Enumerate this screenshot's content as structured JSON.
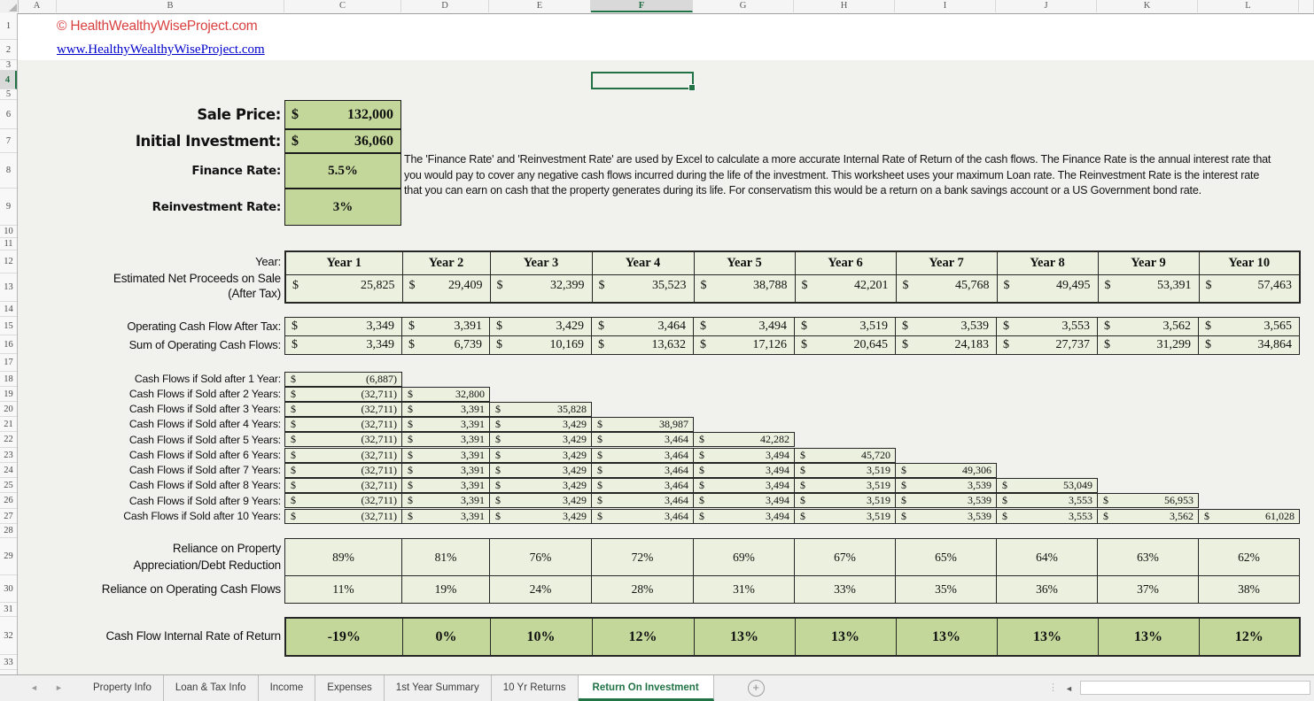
{
  "colors": {
    "excel_green": "#217346",
    "light_green_fill": "#EBF1DE",
    "medium_green_fill": "#C4D79B",
    "copyright_red": "#D94040",
    "link_blue": "#0000CC"
  },
  "grid": {
    "columns": [
      "A",
      "B",
      "C",
      "D",
      "E",
      "F",
      "G",
      "H",
      "I",
      "J",
      "K",
      "L"
    ],
    "selected_column": "F",
    "visible_rows": 33,
    "selected_row": 4
  },
  "sheet": {
    "copyright": "© HealthWealthyWiseProject.com",
    "website_link": "www.HealthyWealthyWiseProject.com",
    "inputs": {
      "sale_price": {
        "label": "Sale Price:",
        "currency": "$",
        "value": "132,000"
      },
      "initial_investment": {
        "label": "Initial Investment:",
        "currency": "$",
        "value": "36,060"
      },
      "finance_rate": {
        "label": "Finance Rate:",
        "value": "5.5%"
      },
      "reinvestment_rate": {
        "label": "Reinvestment Rate:",
        "value": "3%"
      }
    },
    "note": "The 'Finance Rate' and 'Reinvestment Rate' are used by Excel to calculate a more accurate Internal Rate of Return of the cash flows.  The Finance Rate is the annual interest rate that you would pay to cover any negative cash flows incurred during the life of the investment.  This worksheet uses your maximum Loan rate.  The Reinvestment Rate is the interest rate that you can earn on cash that the property generates during its life.  For conservatism this would be a return on a bank savings account or a US Government bond rate."
  },
  "table": {
    "currency": "$",
    "year_label": "Year:",
    "years": [
      "Year 1",
      "Year 2",
      "Year 3",
      "Year 4",
      "Year 5",
      "Year 6",
      "Year 7",
      "Year 8",
      "Year 9",
      "Year 10"
    ],
    "net_proceeds": {
      "label_line1": "Estimated Net Proceeds on Sale",
      "label_line2": "(After Tax)",
      "values": [
        "25,825",
        "29,409",
        "32,399",
        "35,523",
        "38,788",
        "42,201",
        "45,768",
        "49,495",
        "53,391",
        "57,463"
      ]
    },
    "operating_cf": {
      "label": "Operating Cash Flow After Tax:",
      "values": [
        "3,349",
        "3,391",
        "3,429",
        "3,464",
        "3,494",
        "3,519",
        "3,539",
        "3,553",
        "3,562",
        "3,565"
      ]
    },
    "sum_cf": {
      "label": "Sum of Operating Cash Flows:",
      "values": [
        "3,349",
        "6,739",
        "10,169",
        "13,632",
        "17,126",
        "20,645",
        "24,183",
        "27,737",
        "31,299",
        "34,864"
      ]
    },
    "sold_rows": [
      {
        "label": "Cash Flows if Sold after 1 Year:",
        "values": [
          "(6,887)"
        ]
      },
      {
        "label": "Cash Flows if Sold after 2 Years:",
        "values": [
          "(32,711)",
          "32,800"
        ]
      },
      {
        "label": "Cash Flows if Sold after 3 Years:",
        "values": [
          "(32,711)",
          "3,391",
          "35,828"
        ]
      },
      {
        "label": "Cash Flows if Sold after 4 Years:",
        "values": [
          "(32,711)",
          "3,391",
          "3,429",
          "38,987"
        ]
      },
      {
        "label": "Cash Flows if Sold after 5 Years:",
        "values": [
          "(32,711)",
          "3,391",
          "3,429",
          "3,464",
          "42,282"
        ]
      },
      {
        "label": "Cash Flows if Sold after 6 Years:",
        "values": [
          "(32,711)",
          "3,391",
          "3,429",
          "3,464",
          "3,494",
          "45,720"
        ]
      },
      {
        "label": "Cash Flows if Sold after 7 Years:",
        "values": [
          "(32,711)",
          "3,391",
          "3,429",
          "3,464",
          "3,494",
          "3,519",
          "49,306"
        ]
      },
      {
        "label": "Cash Flows if Sold after 8 Years:",
        "values": [
          "(32,711)",
          "3,391",
          "3,429",
          "3,464",
          "3,494",
          "3,519",
          "3,539",
          "53,049"
        ]
      },
      {
        "label": "Cash Flows if Sold after 9 Years:",
        "values": [
          "(32,711)",
          "3,391",
          "3,429",
          "3,464",
          "3,494",
          "3,519",
          "3,539",
          "3,553",
          "56,953"
        ]
      },
      {
        "label": "Cash Flows if Sold after 10 Years:",
        "values": [
          "(32,711)",
          "3,391",
          "3,429",
          "3,464",
          "3,494",
          "3,519",
          "3,539",
          "3,553",
          "3,562",
          "61,028"
        ]
      }
    ],
    "reliance_appreciation": {
      "label_line1": "Reliance on Property",
      "label_line2": "Appreciation/Debt Reduction",
      "values": [
        "89%",
        "81%",
        "76%",
        "72%",
        "69%",
        "67%",
        "65%",
        "64%",
        "63%",
        "62%"
      ]
    },
    "reliance_operating": {
      "label": "Reliance on Operating Cash Flows",
      "values": [
        "11%",
        "19%",
        "24%",
        "28%",
        "31%",
        "33%",
        "35%",
        "36%",
        "37%",
        "38%"
      ]
    },
    "irr": {
      "label": "Cash Flow Internal Rate of Return",
      "values": [
        "-19%",
        "0%",
        "10%",
        "12%",
        "13%",
        "13%",
        "13%",
        "13%",
        "13%",
        "12%"
      ]
    }
  },
  "tabbar": {
    "tabs": [
      {
        "label": "Property Info",
        "active": false
      },
      {
        "label": "Loan & Tax Info",
        "active": false
      },
      {
        "label": "Income",
        "active": false
      },
      {
        "label": "Expenses",
        "active": false
      },
      {
        "label": "1st Year Summary",
        "active": false
      },
      {
        "label": "10 Yr Returns",
        "active": false
      },
      {
        "label": "Return On Investment",
        "active": true
      }
    ],
    "add_label": "+"
  }
}
